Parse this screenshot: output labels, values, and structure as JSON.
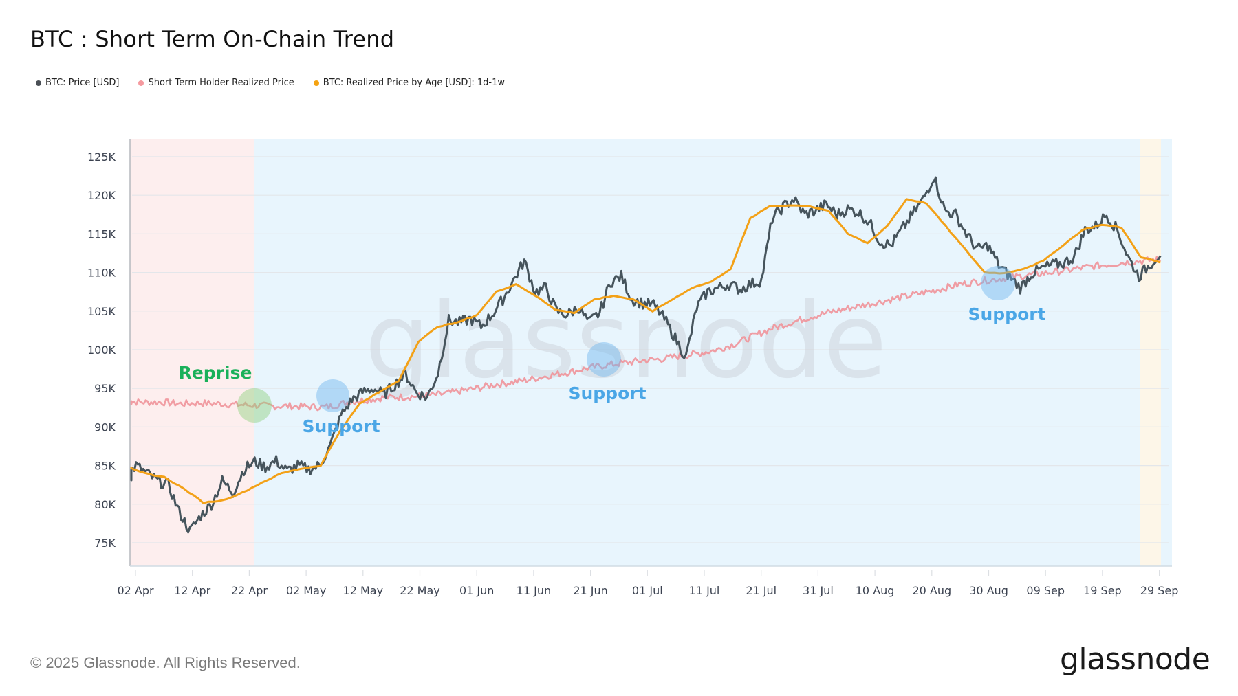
{
  "header": {
    "title": "BTC : Short Term On-Chain Trend"
  },
  "legend": [
    {
      "label": "BTC: Price [USD]",
      "color": "#4a4f55"
    },
    {
      "label": "Short Term Holder Realized Price",
      "color": "#f59a9f"
    },
    {
      "label": "BTC: Realized Price by Age [USD]: 1d-1w",
      "color": "#f5a312"
    }
  ],
  "annotations": [
    {
      "label": "Reprise",
      "color": "#19b05a"
    },
    {
      "label": "Support",
      "color": "#4aa6e6"
    },
    {
      "label": "Support",
      "color": "#4aa6e6"
    },
    {
      "label": "Support",
      "color": "#4aa6e6"
    }
  ],
  "watermark": "glassnode",
  "footer": {
    "copyright": "© 2025 Glassnode. All Rights Reserved.",
    "brand": "glassnode"
  },
  "colors": {
    "price": "#46545c",
    "sth": "#f0939a",
    "age_1d1w": "#f3a117",
    "bg_red_zone": "#fdeeee",
    "bg_blue_zone": "#e8f5fd",
    "bg_yellow_zone": "#fdf6e8",
    "grid": "#e3e6ea",
    "axis_text": "#3b4250"
  },
  "chart_data": {
    "type": "line",
    "title": "BTC : Short Term On-Chain Trend",
    "xlabel": "",
    "ylabel": "",
    "ylim": [
      72000,
      127000
    ],
    "y_ticks": [
      "75K",
      "80K",
      "85K",
      "90K",
      "95K",
      "100K",
      "105K",
      "110K",
      "115K",
      "120K",
      "125K"
    ],
    "x_ticks": [
      "02 Apr",
      "12 Apr",
      "22 Apr",
      "02 May",
      "12 May",
      "22 May",
      "01 Jun",
      "11 Jun",
      "21 Jun",
      "01 Jul",
      "11 Jul",
      "21 Jul",
      "31 Jul",
      "10 Aug",
      "20 Aug",
      "30 Aug",
      "09 Sep",
      "19 Sep",
      "29 Sep"
    ],
    "grid": true,
    "legend_position": "top-left",
    "background_zones": [
      {
        "from": "01 Apr",
        "to": "23 Apr",
        "color": "red",
        "meaning": "below STH realized price"
      },
      {
        "from": "23 Apr",
        "to": "26 Sep",
        "color": "blue",
        "meaning": "above STH realized price"
      },
      {
        "from": "26 Sep",
        "to": "29 Sep",
        "color": "yellow"
      },
      {
        "from": "29 Sep",
        "to": "01 Oct",
        "color": "blue"
      }
    ],
    "annotation_points": [
      {
        "label": "Reprise",
        "date": "23 Apr",
        "value": 93000
      },
      {
        "label": "Support",
        "date": "07 May",
        "value": 94000
      },
      {
        "label": "Support",
        "date": "22 Jun",
        "value": 98500
      },
      {
        "label": "Support",
        "date": "31 Aug",
        "value": 108500
      }
    ],
    "x_start": "01 Apr",
    "x_step_days": 3,
    "series": [
      {
        "name": "BTC: Price [USD]",
        "values": [
          83500,
          85000,
          84000,
          83000,
          82500,
          79000,
          76500,
          78500,
          80000,
          83000,
          81500,
          84500,
          85500,
          84800,
          85600,
          84300,
          85000,
          84500,
          85000,
          87500,
          91500,
          93500,
          94500,
          95000,
          94200,
          95500,
          96800,
          94500,
          93800,
          97000,
          103800,
          103500,
          104000,
          103000,
          104500,
          106500,
          109000,
          111500,
          107500,
          108000,
          105000,
          104500,
          105500,
          103500,
          104800,
          108800,
          109500,
          106500,
          106000,
          105800,
          104000,
          101500,
          99000,
          105500,
          107500,
          108000,
          108500,
          107800,
          108500,
          109000,
          117000,
          118500,
          119500,
          117500,
          118000,
          118800,
          117500,
          118200,
          117800,
          116500,
          114000,
          113500,
          115500,
          117500,
          119500,
          122500,
          118000,
          117500,
          115000,
          113000,
          113500,
          111000,
          109500,
          108000,
          109800,
          110500,
          111000,
          111200,
          112000,
          115500,
          116000,
          117500,
          115500,
          112000,
          109500,
          111000,
          112500
        ],
        "color": "#46545c"
      },
      {
        "name": "Short Term Holder Realized Price",
        "values": [
          93300,
          93200,
          93200,
          93000,
          93100,
          93000,
          92900,
          92800,
          92700,
          92700,
          92600,
          92600,
          93200,
          93500,
          93800,
          93900,
          94000,
          94200,
          94600,
          95000,
          95500,
          95800,
          96200,
          96700,
          97100,
          97600,
          98000,
          98300,
          98600,
          98800,
          99200,
          99500,
          100000,
          100800,
          101800,
          102800,
          103500,
          104200,
          104800,
          105300,
          105800,
          106300,
          106800,
          107300,
          107800,
          108400,
          108800,
          109100,
          109400,
          109700,
          110000,
          110300,
          110700,
          111000,
          111300,
          111500,
          111700
        ],
        "color": "#f0939a"
      },
      {
        "name": "BTC: Realized Price by Age [USD]: 1d-1w",
        "values": [
          84800,
          84000,
          83500,
          82000,
          80200,
          80500,
          81500,
          82800,
          84000,
          84600,
          85000,
          89500,
          93000,
          94500,
          96000,
          101000,
          103000,
          103500,
          104500,
          107500,
          108500,
          107000,
          105200,
          104800,
          106500,
          107000,
          106500,
          105000,
          106500,
          108000,
          108800,
          110500,
          117000,
          118600,
          118700,
          118600,
          118000,
          115000,
          113800,
          116000,
          119500,
          119000,
          116000,
          113000,
          110000,
          109900,
          110500,
          111500,
          113500,
          115500,
          116200,
          115800,
          112000,
          111300
        ],
        "color": "#f3a117"
      }
    ]
  }
}
